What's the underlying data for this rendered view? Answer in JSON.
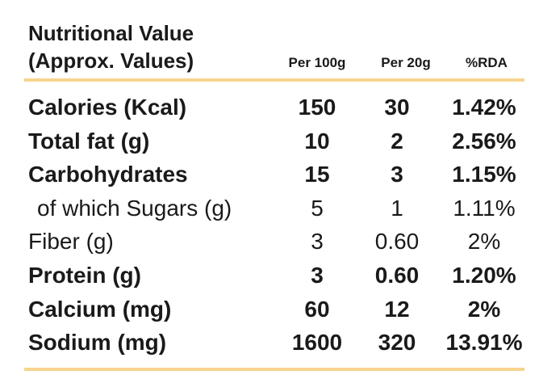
{
  "header": {
    "title": "Nutritional Value",
    "subtitle": "(Approx. Values)"
  },
  "table": {
    "columns": [
      "Per 100g",
      "Per 20g",
      "%RDA"
    ],
    "rows": [
      [
        "Calories (Kcal)",
        "150",
        "30",
        "1.42%"
      ],
      [
        "Total fat (g)",
        "10",
        "2",
        "2.56%"
      ],
      [
        "Carbohydrates",
        "15",
        "3",
        "1.15%"
      ],
      [
        "of which Sugars (g)",
        "5",
        "1",
        "1.11%"
      ],
      [
        "Fiber (g)",
        "3",
        "0.60",
        "2%"
      ],
      [
        "Protein (g)",
        "3",
        "0.60",
        "1.20%"
      ],
      [
        "Calcium (mg)",
        "60",
        "12",
        "2%"
      ],
      [
        "Sodium  (mg)",
        "1600",
        "320",
        "13.91%"
      ]
    ]
  }
}
